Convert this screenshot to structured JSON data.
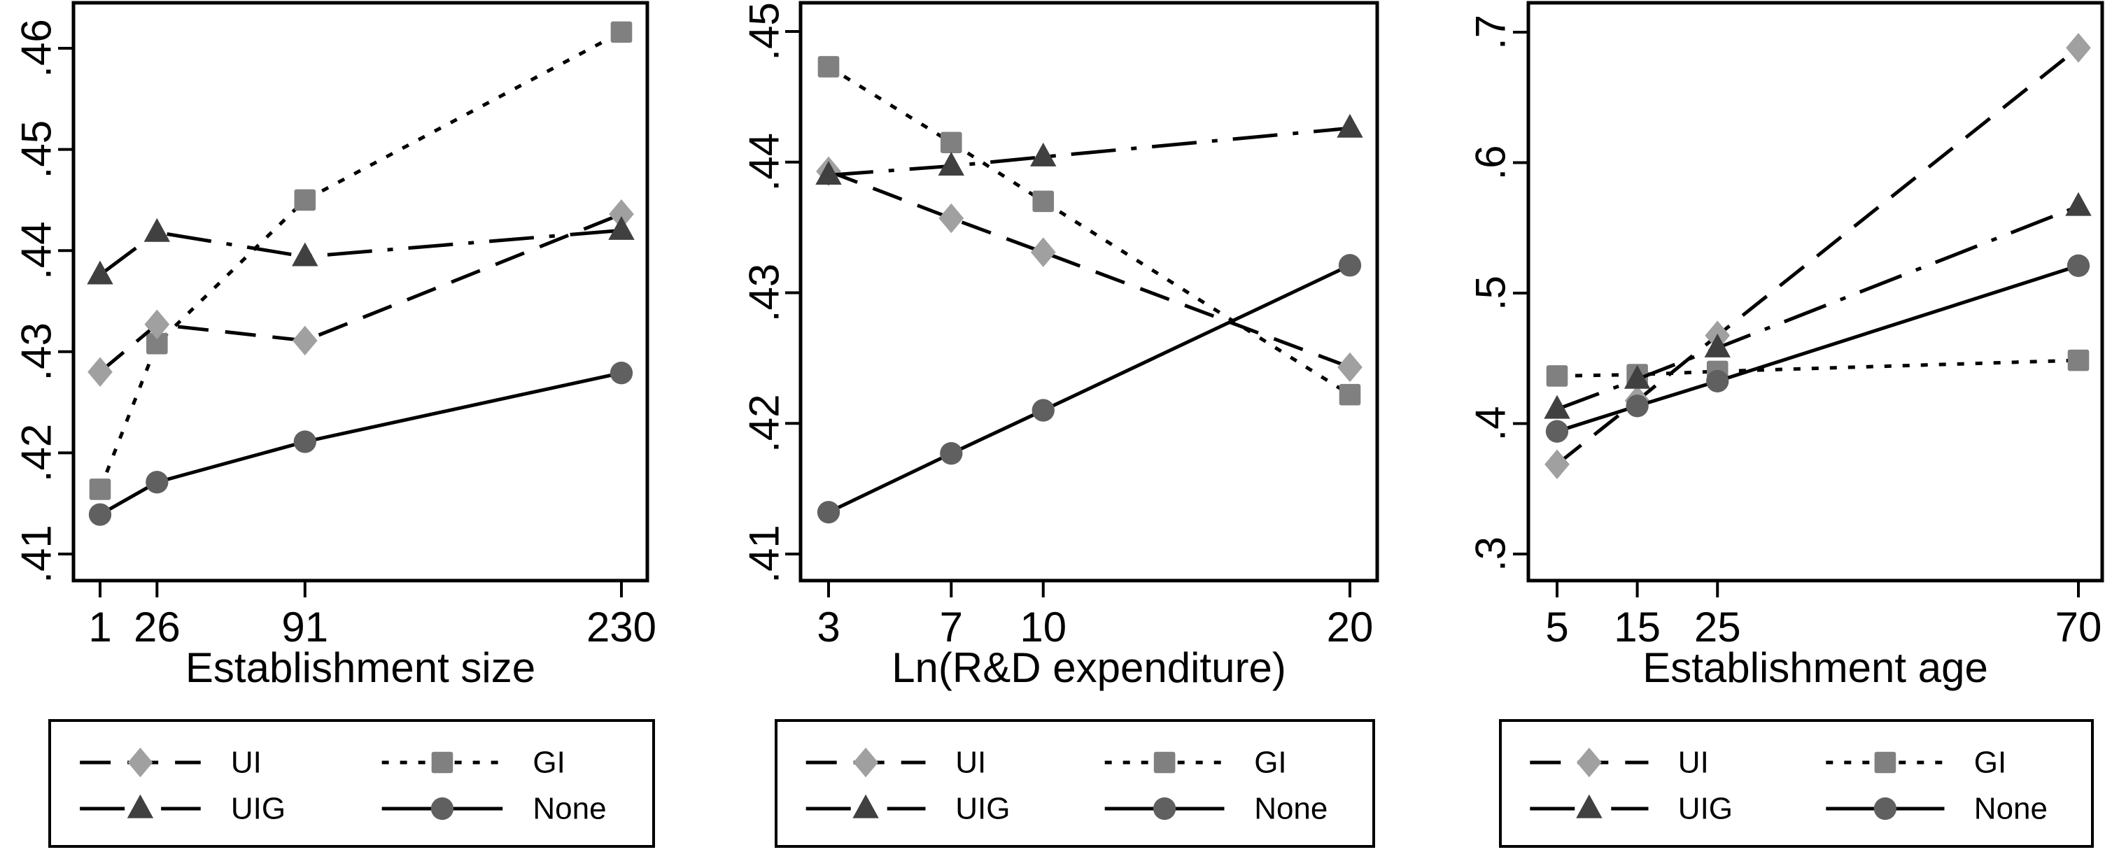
{
  "legend_labels": {
    "UI": "UI",
    "GI": "GI",
    "UIG": "UIG",
    "None": "None"
  },
  "series_styles": {
    "UI": {
      "marker": "diamond",
      "color": "#a0a0a0",
      "line": "long-dash"
    },
    "GI": {
      "marker": "square",
      "color": "#808080",
      "line": "dotted"
    },
    "UIG": {
      "marker": "triangle",
      "color": "#404040",
      "line": "dash-dot"
    },
    "None": {
      "marker": "circle",
      "color": "#606060",
      "line": "solid"
    }
  },
  "chart_data": [
    {
      "type": "line",
      "title": "",
      "xlabel": "Establishment size",
      "ylabel": "",
      "x": [
        1,
        26,
        91,
        230
      ],
      "x_tick_labels": [
        "1",
        "26",
        "91",
        "230"
      ],
      "y_ticks": [
        0.41,
        0.42,
        0.43,
        0.44,
        0.45,
        0.46
      ],
      "y_tick_labels": [
        ".41",
        ".42",
        ".43",
        ".44",
        ".45",
        ".46"
      ],
      "ylim": [
        0.41,
        0.46
      ],
      "legend_placement": "bottom",
      "series": [
        {
          "name": "UI",
          "values": [
            0.428,
            0.4327,
            0.4311,
            0.4436
          ]
        },
        {
          "name": "GI",
          "values": [
            0.4164,
            0.4308,
            0.445,
            0.4616
          ]
        },
        {
          "name": "UIG",
          "values": [
            0.4376,
            0.4418,
            0.4394,
            0.442
          ]
        },
        {
          "name": "None",
          "values": [
            0.4139,
            0.4171,
            0.4211,
            0.4279
          ]
        }
      ]
    },
    {
      "type": "line",
      "title": "",
      "xlabel": "Ln(R&D expenditure)",
      "ylabel": "",
      "x": [
        3,
        7,
        10,
        20
      ],
      "x_tick_labels": [
        "3",
        "7",
        "10",
        "20"
      ],
      "y_ticks": [
        0.41,
        0.42,
        0.43,
        0.44,
        0.45
      ],
      "y_tick_labels": [
        ".41",
        ".42",
        ".43",
        ".44",
        ".45"
      ],
      "ylim": [
        0.41,
        0.45
      ],
      "legend_placement": "bottom",
      "series": [
        {
          "name": "UI",
          "values": [
            0.4393,
            0.4357,
            0.4331,
            0.4243
          ]
        },
        {
          "name": "GI",
          "values": [
            0.4473,
            0.4415,
            0.437,
            0.4222
          ]
        },
        {
          "name": "UIG",
          "values": [
            0.439,
            0.4397,
            0.4404,
            0.4426
          ]
        },
        {
          "name": "None",
          "values": [
            0.4132,
            0.4177,
            0.421,
            0.4321
          ]
        }
      ]
    },
    {
      "type": "line",
      "title": "",
      "xlabel": "Establishment age",
      "ylabel": "",
      "x": [
        5,
        15,
        25,
        70
      ],
      "x_tick_labels": [
        "5",
        "15",
        "25",
        "70"
      ],
      "y_ticks": [
        0.3,
        0.4,
        0.5,
        0.6,
        0.7
      ],
      "y_tick_labels": [
        ".3",
        ".4",
        ".5",
        ".6",
        ".7"
      ],
      "ylim": [
        0.3,
        0.7
      ],
      "legend_placement": "bottom",
      "series": [
        {
          "name": "UI",
          "values": [
            0.3688,
            0.4176,
            0.4675,
            0.688
          ]
        },
        {
          "name": "GI",
          "values": [
            0.4365,
            0.4375,
            0.44,
            0.4485
          ]
        },
        {
          "name": "UIG",
          "values": [
            0.411,
            0.434,
            0.458,
            0.5665
          ]
        },
        {
          "name": "None",
          "values": [
            0.394,
            0.4135,
            0.4325,
            0.521
          ]
        }
      ]
    }
  ]
}
